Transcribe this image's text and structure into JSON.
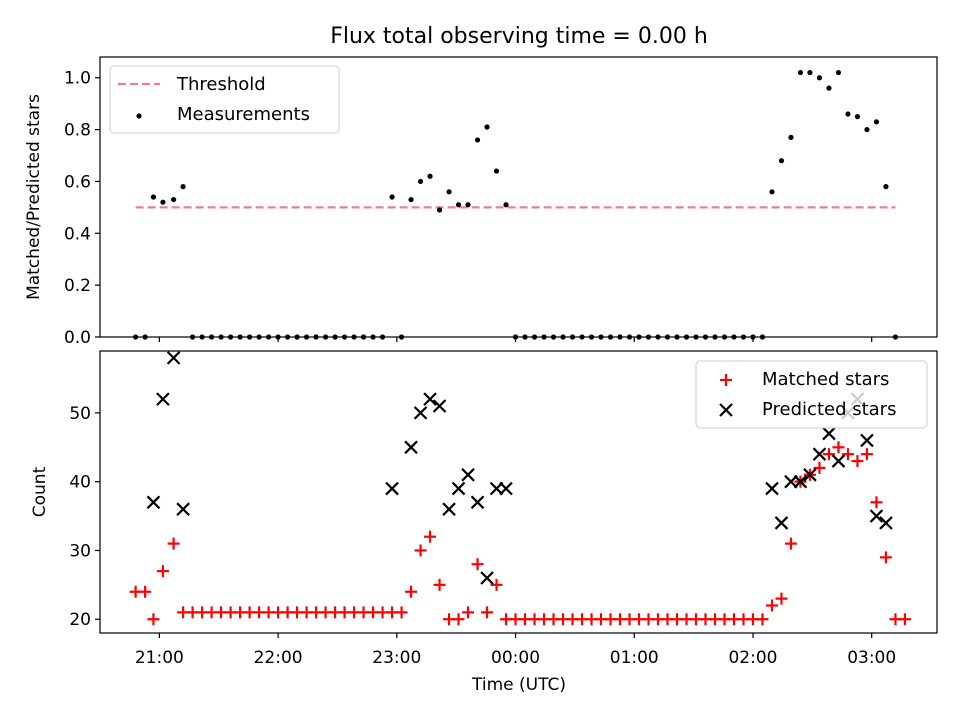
{
  "figure": {
    "title": "Flux total observing time = 0.00 h"
  },
  "chart_data": [
    {
      "type": "scatter",
      "panel": "top",
      "title": "Flux total observing time = 0.00 h",
      "xlabel": "",
      "ylabel": "Matched/Predicted stars",
      "x_unit": "hours relative to 00:00 UTC",
      "xlim": [
        -3.5,
        3.55
      ],
      "ylim": [
        0,
        1.08
      ],
      "yticks": [
        0.0,
        0.2,
        0.4,
        0.6,
        0.8,
        1.0
      ],
      "ytick_labels": [
        "0.0",
        "0.2",
        "0.4",
        "0.6",
        "0.8",
        "1.0"
      ],
      "xticks": [
        -3,
        -2,
        -1,
        0,
        1,
        2,
        3
      ],
      "legend": {
        "position": "top-left",
        "entries": [
          "Threshold",
          "Measurements"
        ]
      },
      "colors": {
        "threshold": "#f08080",
        "measurements": "#000000"
      },
      "series": [
        {
          "name": "Threshold",
          "kind": "line-dashed",
          "x": [
            -3.2,
            3.2
          ],
          "y": [
            0.5,
            0.5
          ]
        },
        {
          "name": "Measurements",
          "kind": "points",
          "points": [
            [
              -3.2,
              0.0
            ],
            [
              -3.12,
              0.0
            ],
            [
              -3.05,
              0.54
            ],
            [
              -2.97,
              0.52
            ],
            [
              -2.88,
              0.53
            ],
            [
              -2.8,
              0.58
            ],
            [
              -2.72,
              0.0
            ],
            [
              -2.64,
              0.0
            ],
            [
              -2.56,
              0.0
            ],
            [
              -2.48,
              0.0
            ],
            [
              -2.4,
              0.0
            ],
            [
              -2.32,
              0.0
            ],
            [
              -2.24,
              0.0
            ],
            [
              -2.16,
              0.0
            ],
            [
              -2.08,
              0.0
            ],
            [
              -2.0,
              0.0
            ],
            [
              -1.92,
              0.0
            ],
            [
              -1.84,
              0.0
            ],
            [
              -1.76,
              0.0
            ],
            [
              -1.68,
              0.0
            ],
            [
              -1.6,
              0.0
            ],
            [
              -1.52,
              0.0
            ],
            [
              -1.44,
              0.0
            ],
            [
              -1.36,
              0.0
            ],
            [
              -1.28,
              0.0
            ],
            [
              -1.2,
              0.0
            ],
            [
              -1.12,
              0.0
            ],
            [
              -1.04,
              0.54
            ],
            [
              -0.96,
              0.0
            ],
            [
              -0.88,
              0.53
            ],
            [
              -0.8,
              0.6
            ],
            [
              -0.72,
              0.62
            ],
            [
              -0.64,
              0.49
            ],
            [
              -0.56,
              0.56
            ],
            [
              -0.48,
              0.51
            ],
            [
              -0.4,
              0.51
            ],
            [
              -0.32,
              0.76
            ],
            [
              -0.24,
              0.81
            ],
            [
              -0.16,
              0.64
            ],
            [
              -0.08,
              0.51
            ],
            [
              0.0,
              0.0
            ],
            [
              0.08,
              0.0
            ],
            [
              0.16,
              0.0
            ],
            [
              0.24,
              0.0
            ],
            [
              0.32,
              0.0
            ],
            [
              0.4,
              0.0
            ],
            [
              0.48,
              0.0
            ],
            [
              0.56,
              0.0
            ],
            [
              0.64,
              0.0
            ],
            [
              0.72,
              0.0
            ],
            [
              0.8,
              0.0
            ],
            [
              0.88,
              0.0
            ],
            [
              0.96,
              0.0
            ],
            [
              1.04,
              0.0
            ],
            [
              1.12,
              0.0
            ],
            [
              1.2,
              0.0
            ],
            [
              1.28,
              0.0
            ],
            [
              1.36,
              0.0
            ],
            [
              1.44,
              0.0
            ],
            [
              1.52,
              0.0
            ],
            [
              1.6,
              0.0
            ],
            [
              1.68,
              0.0
            ],
            [
              1.76,
              0.0
            ],
            [
              1.84,
              0.0
            ],
            [
              1.92,
              0.0
            ],
            [
              2.0,
              0.0
            ],
            [
              2.08,
              0.0
            ],
            [
              2.16,
              0.56
            ],
            [
              2.24,
              0.68
            ],
            [
              2.32,
              0.77
            ],
            [
              2.4,
              1.02
            ],
            [
              2.48,
              1.02
            ],
            [
              2.56,
              1.0
            ],
            [
              2.64,
              0.96
            ],
            [
              2.72,
              1.02
            ],
            [
              2.8,
              0.86
            ],
            [
              2.88,
              0.85
            ],
            [
              2.96,
              0.8
            ],
            [
              3.04,
              0.83
            ],
            [
              3.12,
              0.58
            ],
            [
              3.2,
              0.0
            ]
          ]
        }
      ]
    },
    {
      "type": "scatter",
      "panel": "bottom",
      "title": "",
      "xlabel": "Time (UTC)",
      "ylabel": "Count",
      "x_unit": "hours relative to 00:00 UTC",
      "xlim": [
        -3.5,
        3.55
      ],
      "ylim": [
        18,
        59
      ],
      "yticks": [
        20,
        30,
        40,
        50
      ],
      "ytick_labels": [
        "20",
        "30",
        "40",
        "50"
      ],
      "xticks": [
        -3,
        -2,
        -1,
        0,
        1,
        2,
        3
      ],
      "xtick_labels": [
        "21:00",
        "22:00",
        "23:00",
        "00:00",
        "01:00",
        "02:00",
        "03:00"
      ],
      "legend": {
        "position": "top-right",
        "entries": [
          "Matched stars",
          "Predicted stars"
        ]
      },
      "colors": {
        "matched": "#ff0000",
        "predicted": "#000000"
      },
      "series": [
        {
          "name": "Matched stars",
          "marker": "plus",
          "points": [
            [
              -3.2,
              24
            ],
            [
              -3.12,
              24
            ],
            [
              -3.05,
              20
            ],
            [
              -2.97,
              27
            ],
            [
              -2.88,
              31
            ],
            [
              -2.8,
              21
            ],
            [
              -2.72,
              21
            ],
            [
              -2.64,
              21
            ],
            [
              -2.56,
              21
            ],
            [
              -2.48,
              21
            ],
            [
              -2.4,
              21
            ],
            [
              -2.32,
              21
            ],
            [
              -2.24,
              21
            ],
            [
              -2.16,
              21
            ],
            [
              -2.08,
              21
            ],
            [
              -2.0,
              21
            ],
            [
              -1.92,
              21
            ],
            [
              -1.84,
              21
            ],
            [
              -1.76,
              21
            ],
            [
              -1.68,
              21
            ],
            [
              -1.6,
              21
            ],
            [
              -1.52,
              21
            ],
            [
              -1.44,
              21
            ],
            [
              -1.36,
              21
            ],
            [
              -1.28,
              21
            ],
            [
              -1.2,
              21
            ],
            [
              -1.12,
              21
            ],
            [
              -1.04,
              21
            ],
            [
              -0.96,
              21
            ],
            [
              -0.88,
              24
            ],
            [
              -0.8,
              30
            ],
            [
              -0.72,
              32
            ],
            [
              -0.64,
              25
            ],
            [
              -0.56,
              20
            ],
            [
              -0.48,
              20
            ],
            [
              -0.4,
              21
            ],
            [
              -0.32,
              28
            ],
            [
              -0.24,
              21
            ],
            [
              -0.16,
              25
            ],
            [
              -0.08,
              20
            ],
            [
              0.0,
              20
            ],
            [
              0.08,
              20
            ],
            [
              0.16,
              20
            ],
            [
              0.24,
              20
            ],
            [
              0.32,
              20
            ],
            [
              0.4,
              20
            ],
            [
              0.48,
              20
            ],
            [
              0.56,
              20
            ],
            [
              0.64,
              20
            ],
            [
              0.72,
              20
            ],
            [
              0.8,
              20
            ],
            [
              0.88,
              20
            ],
            [
              0.96,
              20
            ],
            [
              1.04,
              20
            ],
            [
              1.12,
              20
            ],
            [
              1.2,
              20
            ],
            [
              1.28,
              20
            ],
            [
              1.36,
              20
            ],
            [
              1.44,
              20
            ],
            [
              1.52,
              20
            ],
            [
              1.6,
              20
            ],
            [
              1.68,
              20
            ],
            [
              1.76,
              20
            ],
            [
              1.84,
              20
            ],
            [
              1.92,
              20
            ],
            [
              2.0,
              20
            ],
            [
              2.08,
              20
            ],
            [
              2.16,
              22
            ],
            [
              2.24,
              23
            ],
            [
              2.32,
              31
            ],
            [
              2.4,
              40
            ],
            [
              2.48,
              41
            ],
            [
              2.56,
              42
            ],
            [
              2.64,
              44
            ],
            [
              2.72,
              45
            ],
            [
              2.8,
              44
            ],
            [
              2.88,
              43
            ],
            [
              2.96,
              44
            ],
            [
              3.04,
              37
            ],
            [
              3.12,
              29
            ],
            [
              3.2,
              20
            ],
            [
              3.28,
              20
            ]
          ]
        },
        {
          "name": "Predicted stars",
          "marker": "x",
          "points": [
            [
              -3.05,
              37
            ],
            [
              -2.97,
              52
            ],
            [
              -2.88,
              58
            ],
            [
              -2.8,
              36
            ],
            [
              -1.04,
              39
            ],
            [
              -0.88,
              45
            ],
            [
              -0.8,
              50
            ],
            [
              -0.72,
              52
            ],
            [
              -0.64,
              51
            ],
            [
              -0.56,
              36
            ],
            [
              -0.48,
              39
            ],
            [
              -0.4,
              41
            ],
            [
              -0.32,
              37
            ],
            [
              -0.24,
              26
            ],
            [
              -0.16,
              39
            ],
            [
              -0.08,
              39
            ],
            [
              2.16,
              39
            ],
            [
              2.24,
              34
            ],
            [
              2.32,
              40
            ],
            [
              2.4,
              40
            ],
            [
              2.48,
              41
            ],
            [
              2.56,
              44
            ],
            [
              2.64,
              47
            ],
            [
              2.72,
              43
            ],
            [
              2.8,
              50
            ],
            [
              2.88,
              52
            ],
            [
              2.96,
              46
            ],
            [
              3.04,
              35
            ],
            [
              3.12,
              34
            ]
          ]
        }
      ]
    }
  ]
}
